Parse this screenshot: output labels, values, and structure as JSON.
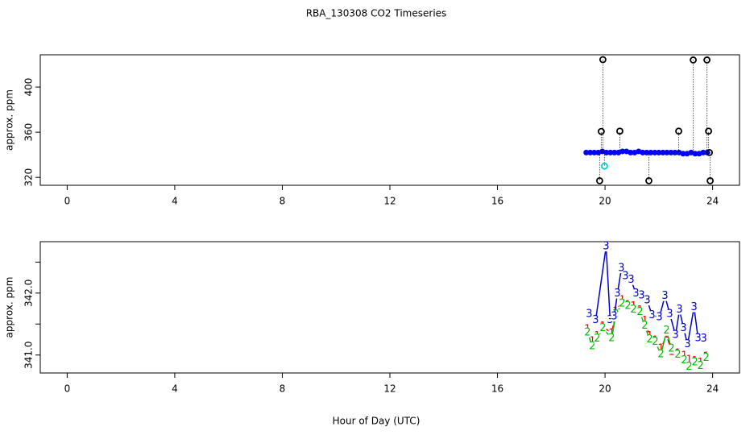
{
  "title": "RBA_130308  CO2 Timeseries",
  "x_label": "Hour of Day (UTC)",
  "chart_data": [
    {
      "type": "scatter",
      "y_label": "approx. ppm",
      "xlim": [
        -1,
        25
      ],
      "xticks": [
        0,
        4,
        8,
        12,
        16,
        20,
        24
      ],
      "ylim": [
        313,
        428.6
      ],
      "yticks": [
        320,
        360,
        400
      ],
      "stems_from": 342,
      "series": [
        {
          "color": "#0000ff",
          "marker": "dot",
          "x": [
            19.3,
            19.45,
            19.6,
            19.75,
            19.9,
            20.05,
            20.2,
            20.35,
            20.5,
            20.65,
            20.8,
            20.95,
            21.1,
            21.25,
            21.4,
            21.55,
            21.7,
            21.85,
            22.0,
            22.15,
            22.3,
            22.45,
            22.6,
            22.75,
            22.9,
            23.05,
            23.2,
            23.35,
            23.5,
            23.65,
            23.8
          ],
          "values": [
            342,
            342,
            342,
            342,
            343,
            342,
            342,
            342,
            342,
            343,
            343,
            342,
            342,
            343,
            342,
            342,
            342,
            342,
            342,
            342,
            342,
            342,
            342,
            342,
            341,
            341,
            342,
            341,
            341,
            342,
            342
          ]
        },
        {
          "color": "#000000",
          "marker": "ring",
          "x": [
            19.8,
            19.86,
            19.92,
            20.55,
            21.63,
            22.74,
            23.28,
            23.79,
            23.85,
            23.88,
            23.91
          ],
          "values": [
            317,
            360.7,
            424.3,
            361,
            317,
            361,
            424,
            424,
            361,
            342,
            317
          ]
        },
        {
          "color": "#00cccc",
          "marker": "ring",
          "x": [
            19.98
          ],
          "values": [
            330
          ]
        }
      ]
    },
    {
      "type": "line",
      "y_label": "approx. ppm",
      "xlim": [
        -1,
        25
      ],
      "xticks": [
        0,
        4,
        8,
        12,
        16,
        20,
        24
      ],
      "ylim": [
        340.71,
        342.83
      ],
      "yticks": [
        {
          "value": 341,
          "label": "341.0"
        },
        {
          "value": 342,
          "label": "342.0"
        }
      ],
      "yminor_ticks": [
        341.5,
        342.5
      ],
      "series": [
        {
          "marker": "1",
          "color": "#ff0000",
          "x": [
            19.35,
            19.53,
            19.71,
            19.92,
            20.25,
            20.4,
            20.64,
            20.85,
            21.06,
            21.3,
            21.48,
            21.66,
            21.87,
            22.08,
            22.29,
            22.47,
            22.71,
            22.95,
            23.13,
            23.34,
            23.55,
            23.76
          ],
          "values": [
            341.41,
            341.22,
            341.3,
            341.46,
            341.35,
            341.7,
            341.88,
            341.8,
            341.78,
            341.72,
            341.55,
            341.3,
            341.23,
            341.1,
            341.33,
            341.05,
            341.02,
            340.98,
            340.92,
            340.9,
            340.87,
            340.97
          ]
        },
        {
          "marker": "2",
          "color": "#00bb00",
          "x": [
            19.35,
            19.53,
            19.71,
            19.92,
            20.25,
            20.4,
            20.64,
            20.85,
            21.06,
            21.3,
            21.48,
            21.66,
            21.87,
            22.08,
            22.29,
            22.47,
            22.71,
            22.95,
            23.13,
            23.34,
            23.55,
            23.76
          ],
          "values": [
            341.36,
            341.14,
            341.26,
            341.43,
            341.27,
            341.66,
            341.83,
            341.79,
            341.73,
            341.69,
            341.47,
            341.25,
            341.21,
            341.01,
            341.39,
            341.1,
            341.0,
            340.91,
            340.81,
            340.88,
            340.82,
            340.95
          ]
        },
        {
          "marker": "3",
          "color": "#0000cc",
          "x": [
            19.41,
            19.65,
            20.04,
            20.19,
            20.34,
            20.46,
            20.61,
            20.76,
            20.97,
            21.15,
            21.36,
            21.57,
            21.75,
            22.02,
            22.23,
            22.41,
            22.62,
            22.77,
            22.92,
            23.07,
            23.31,
            23.46,
            23.67
          ],
          "values": [
            341.66,
            341.56,
            342.75,
            341.56,
            341.62,
            341.99,
            342.4,
            342.27,
            342.21,
            341.99,
            341.96,
            341.88,
            341.64,
            341.61,
            341.95,
            341.66,
            341.32,
            341.73,
            341.43,
            341.17,
            341.77,
            341.27,
            341.26
          ]
        }
      ]
    }
  ]
}
